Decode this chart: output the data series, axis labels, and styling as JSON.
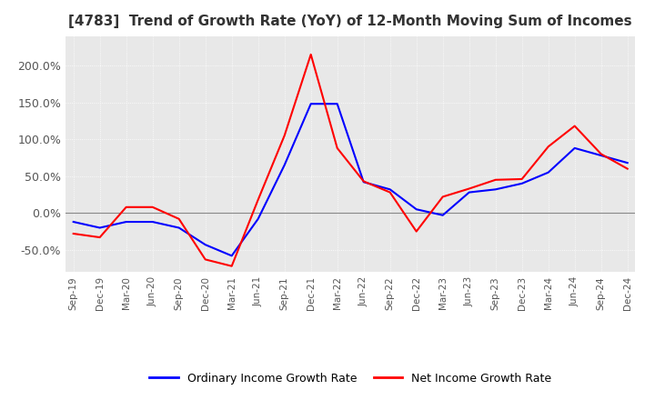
{
  "title": "[4783]  Trend of Growth Rate (YoY) of 12-Month Moving Sum of Incomes",
  "title_fontsize": 11,
  "ylim": [
    -80,
    240
  ],
  "yticks": [
    -50,
    0,
    50,
    100,
    150,
    200
  ],
  "yticklabels": [
    "-50.0%",
    "0.0%",
    "50.0%",
    "100.0%",
    "150.0%",
    "200.0%"
  ],
  "legend_labels": [
    "Ordinary Income Growth Rate",
    "Net Income Growth Rate"
  ],
  "legend_colors": [
    "#0000ff",
    "#ff0000"
  ],
  "background_color": "#ffffff",
  "plot_bg_color": "#e8e8e8",
  "dates": [
    "Sep-19",
    "Dec-19",
    "Mar-20",
    "Jun-20",
    "Sep-20",
    "Dec-20",
    "Mar-21",
    "Jun-21",
    "Sep-21",
    "Dec-21",
    "Mar-22",
    "Jun-22",
    "Sep-22",
    "Dec-22",
    "Mar-23",
    "Jun-23",
    "Sep-23",
    "Dec-23",
    "Mar-24",
    "Jun-24",
    "Sep-24",
    "Dec-24"
  ],
  "ordinary_income": [
    -12,
    -20,
    -12,
    -12,
    -20,
    -43,
    -58,
    -8,
    65,
    148,
    148,
    42,
    32,
    5,
    -3,
    28,
    32,
    40,
    55,
    88,
    78,
    68
  ],
  "net_income": [
    -28,
    -33,
    8,
    8,
    -8,
    -63,
    -72,
    18,
    105,
    215,
    88,
    43,
    28,
    -25,
    22,
    33,
    45,
    46,
    90,
    118,
    80,
    60
  ]
}
